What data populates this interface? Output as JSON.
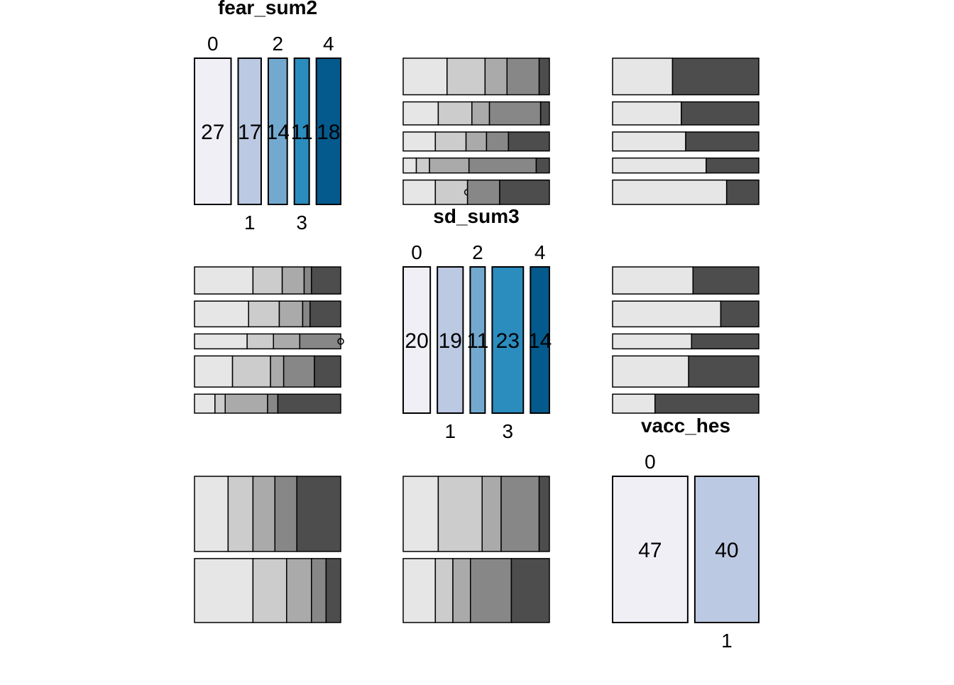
{
  "chart_data": {
    "type": "pairs-mosaic",
    "variables": [
      {
        "name": "fear_sum2",
        "levels": [
          "0",
          "1",
          "2",
          "3",
          "4"
        ],
        "counts": [
          27,
          17,
          14,
          11,
          18
        ]
      },
      {
        "name": "sd_sum3",
        "levels": [
          "0",
          "1",
          "2",
          "3",
          "4"
        ],
        "counts": [
          20,
          19,
          11,
          23,
          14
        ]
      },
      {
        "name": "vacc_hes",
        "levels": [
          "0",
          "1"
        ],
        "counts": [
          47,
          40
        ]
      }
    ],
    "diagonal_colors": [
      "#f1eff6",
      "#bcc9e2",
      "#74a9cf",
      "#2b8cbe",
      "#045a8d"
    ],
    "grey_shades": [
      "#e6e6e6",
      "#cccccc",
      "#aaaaaa",
      "#878787",
      "#4d4d4d"
    ],
    "cells": [
      {
        "row": 0,
        "col": 1,
        "rows": [
          [
            0.3,
            0.26,
            0.15,
            0.22,
            0.07
          ],
          [
            0.24,
            0.23,
            0.12,
            0.35,
            0.06
          ],
          [
            0.22,
            0.21,
            0.14,
            0.15,
            0.28
          ],
          [
            0.09,
            0.09,
            0.27,
            0.46,
            0.09
          ],
          [
            0.22,
            0.22,
            0.0,
            0.22,
            0.34
          ]
        ]
      },
      {
        "row": 0,
        "col": 2,
        "rows": [
          [
            0.41,
            0.59
          ],
          [
            0.47,
            0.53
          ],
          [
            0.5,
            0.5
          ],
          [
            0.64,
            0.36
          ],
          [
            0.78,
            0.22
          ]
        ]
      },
      {
        "row": 1,
        "col": 0,
        "rows": [
          [
            0.4,
            0.2,
            0.15,
            0.05,
            0.2
          ],
          [
            0.37,
            0.21,
            0.16,
            0.05,
            0.21
          ],
          [
            0.36,
            0.18,
            0.18,
            0.28,
            0.0
          ],
          [
            0.26,
            0.26,
            0.09,
            0.21,
            0.18
          ],
          [
            0.14,
            0.07,
            0.29,
            0.07,
            0.43
          ]
        ]
      },
      {
        "row": 1,
        "col": 2,
        "rows": [
          [
            0.55,
            0.45
          ],
          [
            0.74,
            0.26
          ],
          [
            0.54,
            0.46
          ],
          [
            0.52,
            0.48
          ],
          [
            0.29,
            0.71
          ]
        ]
      },
      {
        "row": 2,
        "col": 0,
        "rows": [
          [
            0.23,
            0.17,
            0.15,
            0.15,
            0.3
          ],
          [
            0.4,
            0.23,
            0.17,
            0.1,
            0.1
          ]
        ]
      },
      {
        "row": 2,
        "col": 1,
        "rows": [
          [
            0.24,
            0.3,
            0.13,
            0.26,
            0.07
          ],
          [
            0.22,
            0.12,
            0.12,
            0.28,
            0.26
          ]
        ]
      }
    ]
  }
}
